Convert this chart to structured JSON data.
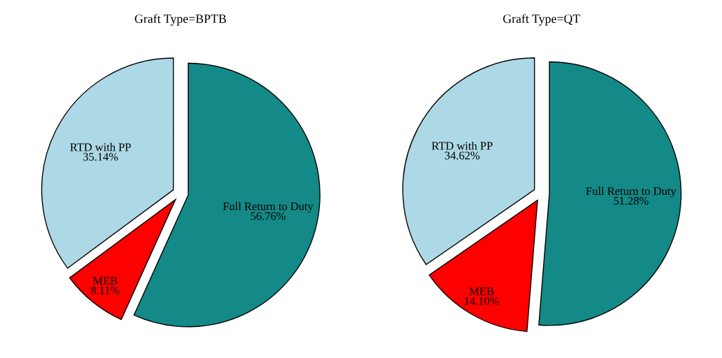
{
  "chart_data": [
    {
      "type": "pie",
      "title": "Graft Type=BPTB",
      "categories": [
        "Full Return to Duty",
        "MEB",
        "RTD with PP"
      ],
      "values": [
        56.76,
        8.11,
        35.14
      ],
      "value_labels": [
        "56.76%",
        "8.11%",
        "35.14%"
      ],
      "colors": [
        "#138a87",
        "#ff0000",
        "#add8e6"
      ]
    },
    {
      "type": "pie",
      "title": "Graft Type=QT",
      "categories": [
        "Full Return to Duty",
        "MEB",
        "RTD with PP"
      ],
      "values": [
        51.28,
        14.1,
        34.62
      ],
      "value_labels": [
        "51.28%",
        "14.10%",
        "34.62%"
      ],
      "colors": [
        "#138a87",
        "#ff0000",
        "#add8e6"
      ]
    }
  ]
}
